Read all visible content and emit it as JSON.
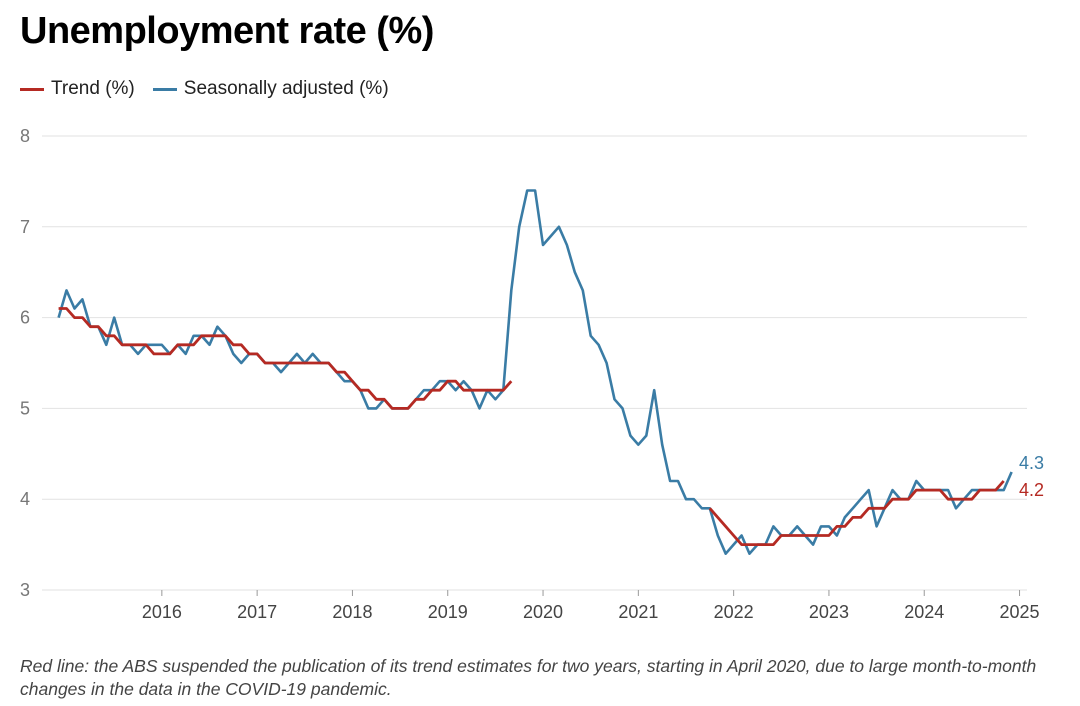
{
  "title": "Unemployment rate (%)",
  "note": "Red line: the ABS suspended the publication of its trend estimates for two years, starting in April 2020, due to large month-to-month changes in the data in the COVID-19 pandemic.",
  "colors": {
    "trend": "#b52a23",
    "seasonal": "#3a7ca5",
    "grid": "#e2e2e2"
  },
  "chart_data": {
    "type": "line",
    "title": "Unemployment rate (%)",
    "xlabel": "",
    "ylabel": "",
    "ylim": [
      3,
      8
    ],
    "yticks": [
      3,
      4,
      5,
      6,
      7,
      8
    ],
    "xlim": [
      "2015-05",
      "2025-07"
    ],
    "xticks": [
      "2016",
      "2017",
      "2018",
      "2019",
      "2020",
      "2021",
      "2022",
      "2023",
      "2024",
      "2025"
    ],
    "grid": true,
    "legend": "top-left",
    "series": [
      {
        "name": "Trend (%)",
        "color": "#b52a23",
        "segments": [
          {
            "start": "2015-06",
            "values": [
              6.1,
              6.1,
              6.0,
              6.0,
              5.9,
              5.9,
              5.8,
              5.8,
              5.7,
              5.7,
              5.7,
              5.7,
              5.6,
              5.6,
              5.6,
              5.7,
              5.7,
              5.7,
              5.8,
              5.8,
              5.8,
              5.8,
              5.7,
              5.7,
              5.6,
              5.6,
              5.5,
              5.5,
              5.5,
              5.5,
              5.5,
              5.5,
              5.5,
              5.5,
              5.5,
              5.4,
              5.4,
              5.3,
              5.2,
              5.2,
              5.1,
              5.1,
              5.0,
              5.0,
              5.0,
              5.1,
              5.1,
              5.2,
              5.2,
              5.3,
              5.3,
              5.2,
              5.2,
              5.2,
              5.2,
              5.2,
              5.2,
              5.3
            ]
          },
          {
            "start": "2022-04",
            "values": [
              3.9,
              3.8,
              3.7,
              3.6,
              3.5,
              3.5,
              3.5,
              3.5,
              3.5,
              3.6,
              3.6,
              3.6,
              3.6,
              3.6,
              3.6,
              3.6,
              3.7,
              3.7,
              3.8,
              3.8,
              3.9,
              3.9,
              3.9,
              4.0,
              4.0,
              4.0,
              4.1,
              4.1,
              4.1,
              4.1,
              4.0,
              4.0,
              4.0,
              4.0,
              4.1,
              4.1,
              4.1,
              4.2
            ]
          }
        ],
        "end_label": "4.2"
      },
      {
        "name": "Seasonally adjusted (%)",
        "color": "#3a7ca5",
        "start": "2015-06",
        "values": [
          6.0,
          6.3,
          6.1,
          6.2,
          5.9,
          5.9,
          5.7,
          6.0,
          5.7,
          5.7,
          5.6,
          5.7,
          5.7,
          5.7,
          5.6,
          5.7,
          5.6,
          5.8,
          5.8,
          5.7,
          5.9,
          5.8,
          5.6,
          5.5,
          5.6,
          5.6,
          5.5,
          5.5,
          5.4,
          5.5,
          5.6,
          5.5,
          5.6,
          5.5,
          5.5,
          5.4,
          5.3,
          5.3,
          5.2,
          5.0,
          5.0,
          5.1,
          5.0,
          5.0,
          5.0,
          5.1,
          5.2,
          5.2,
          5.3,
          5.3,
          5.2,
          5.3,
          5.2,
          5.0,
          5.2,
          5.1,
          5.2,
          6.3,
          7.0,
          7.4,
          7.4,
          6.8,
          6.9,
          7.0,
          6.8,
          6.5,
          6.3,
          5.8,
          5.7,
          5.5,
          5.1,
          5.0,
          4.7,
          4.6,
          4.7,
          5.2,
          4.6,
          4.2,
          4.2,
          4.0,
          4.0,
          3.9,
          3.9,
          3.6,
          3.4,
          3.5,
          3.6,
          3.4,
          3.5,
          3.5,
          3.7,
          3.6,
          3.6,
          3.7,
          3.6,
          3.5,
          3.7,
          3.7,
          3.6,
          3.8,
          3.9,
          4.0,
          4.1,
          3.7,
          3.9,
          4.1,
          4.0,
          4.0,
          4.2,
          4.1,
          4.1,
          4.1,
          4.1,
          3.9,
          4.0,
          4.1,
          4.1,
          4.1,
          4.1,
          4.1,
          4.3
        ],
        "end_label": "4.3"
      }
    ]
  }
}
